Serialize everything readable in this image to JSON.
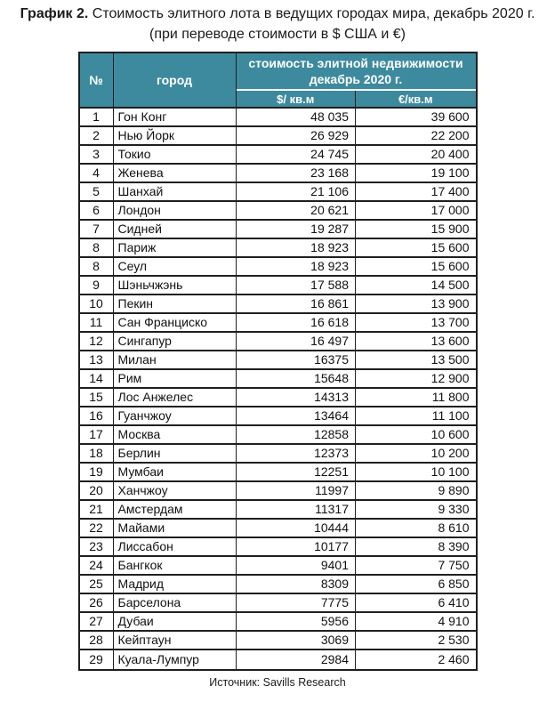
{
  "title": {
    "bold": "График 2.",
    "rest": "Стоимость элитного лота в ведущих городах мира, декабрь 2020 г.",
    "line2": "(при переводе стоимости в $ США и €)"
  },
  "table": {
    "headers": {
      "num": "№",
      "city": "город",
      "group_line1": "стоимость элитной недвижимости",
      "group_line2": "декабрь 2020 г.",
      "usd": "$/ кв.м",
      "eur": "€/кв.м"
    },
    "rows": [
      {
        "num": "1",
        "city": "Гон Конг",
        "usd": "48 035",
        "eur": "39 600"
      },
      {
        "num": "2",
        "city": "Нью Йорк",
        "usd": "26 929",
        "eur": "22 200"
      },
      {
        "num": "3",
        "city": "Токио",
        "usd": "24 745",
        "eur": "20 400"
      },
      {
        "num": "4",
        "city": "Женева",
        "usd": "23 168",
        "eur": "19 100"
      },
      {
        "num": "5",
        "city": "Шанхай",
        "usd": "21 106",
        "eur": "17 400"
      },
      {
        "num": "6",
        "city": "Лондон",
        "usd": "20 621",
        "eur": "17 000"
      },
      {
        "num": "7",
        "city": "Сидней",
        "usd": "19 287",
        "eur": "15 900"
      },
      {
        "num": "8",
        "city": "Париж",
        "usd": "18 923",
        "eur": "15 600"
      },
      {
        "num": "8",
        "city": "Сеул",
        "usd": "18 923",
        "eur": "15 600"
      },
      {
        "num": "9",
        "city": "Шэньчжэнь",
        "usd": "17 588",
        "eur": "14 500"
      },
      {
        "num": "10",
        "city": "Пекин",
        "usd": "16 861",
        "eur": "13 900"
      },
      {
        "num": "11",
        "city": "Сан Франциско",
        "usd": "16 618",
        "eur": "13 700"
      },
      {
        "num": "12",
        "city": "Сингапур",
        "usd": "16 497",
        "eur": "13 600"
      },
      {
        "num": "13",
        "city": "Милан",
        "usd": "16375",
        "eur": "13 500"
      },
      {
        "num": "14",
        "city": "Рим",
        "usd": "15648",
        "eur": "12 900"
      },
      {
        "num": "15",
        "city": "Лос Анжелес",
        "usd": "14313",
        "eur": "11 800"
      },
      {
        "num": "16",
        "city": "Гуанчжоу",
        "usd": "13464",
        "eur": "11 100"
      },
      {
        "num": "17",
        "city": "Москва",
        "usd": "12858",
        "eur": "10 600"
      },
      {
        "num": "18",
        "city": "Берлин",
        "usd": "12373",
        "eur": "10 200"
      },
      {
        "num": "19",
        "city": "Мумбаи",
        "usd": "12251",
        "eur": "10 100"
      },
      {
        "num": "20",
        "city": "Ханчжоу",
        "usd": "11997",
        "eur": "9 890"
      },
      {
        "num": "21",
        "city": "Амстердам",
        "usd": "11317",
        "eur": "9 330"
      },
      {
        "num": "22",
        "city": "Майами",
        "usd": "10444",
        "eur": "8 610"
      },
      {
        "num": "23",
        "city": "Лиссабон",
        "usd": "10177",
        "eur": "8 390"
      },
      {
        "num": "24",
        "city": "Бангкок",
        "usd": "9401",
        "eur": "7 750"
      },
      {
        "num": "25",
        "city": "Мадрид",
        "usd": "8309",
        "eur": "6 850"
      },
      {
        "num": "26",
        "city": "Барселона",
        "usd": "7775",
        "eur": "6 410"
      },
      {
        "num": "27",
        "city": "Дубаи",
        "usd": "5956",
        "eur": "4 910"
      },
      {
        "num": "28",
        "city": "Кейптаун",
        "usd": "3069",
        "eur": "2 530"
      },
      {
        "num": "29",
        "city": "Куала-Лумпур",
        "usd": "2984",
        "eur": "2 460"
      }
    ]
  },
  "source": "Источник: Savills Research",
  "colors": {
    "header_bg": "#3D8A9E",
    "header_text": "#FFFFFF",
    "border_dark": "#1F1F1F",
    "text": "#1A1A1A"
  },
  "chart_data": {
    "type": "table",
    "title": "График 2. Стоимость элитного лота в ведущих городах мира, декабрь 2020 г.",
    "subtitle": "(при переводе стоимости в $ США и €)",
    "group_header": "стоимость элитной недвижимости декабрь 2020 г.",
    "columns": [
      "№",
      "город",
      "$/ кв.м",
      "€/кв.м"
    ],
    "ranks": [
      1,
      2,
      3,
      4,
      5,
      6,
      7,
      8,
      8,
      9,
      10,
      11,
      12,
      13,
      14,
      15,
      16,
      17,
      18,
      19,
      20,
      21,
      22,
      23,
      24,
      25,
      26,
      27,
      28,
      29
    ],
    "categories": [
      "Гон Конг",
      "Нью Йорк",
      "Токио",
      "Женева",
      "Шанхай",
      "Лондон",
      "Сидней",
      "Париж",
      "Сеул",
      "Шэньчжэнь",
      "Пекин",
      "Сан Франциско",
      "Сингапур",
      "Милан",
      "Рим",
      "Лос Анжелес",
      "Гуанчжоу",
      "Москва",
      "Берлин",
      "Мумбаи",
      "Ханчжоу",
      "Амстердам",
      "Майами",
      "Лиссабон",
      "Бангкок",
      "Мадрид",
      "Барселона",
      "Дубаи",
      "Кейптаун",
      "Куала-Лумпур"
    ],
    "series": [
      {
        "name": "$/ кв.м",
        "values": [
          48035,
          26929,
          24745,
          23168,
          21106,
          20621,
          19287,
          18923,
          18923,
          17588,
          16861,
          16618,
          16497,
          16375,
          15648,
          14313,
          13464,
          12858,
          12373,
          12251,
          11997,
          11317,
          10444,
          10177,
          9401,
          8309,
          7775,
          5956,
          3069,
          2984
        ]
      },
      {
        "name": "€/кв.м",
        "values": [
          39600,
          22200,
          20400,
          19100,
          17400,
          17000,
          15900,
          15600,
          15600,
          14500,
          13900,
          13700,
          13600,
          13500,
          12900,
          11800,
          11100,
          10600,
          10200,
          10100,
          9890,
          9330,
          8610,
          8390,
          7750,
          6850,
          6410,
          4910,
          2530,
          2460
        ]
      }
    ],
    "source": "Источник: Savills Research"
  }
}
